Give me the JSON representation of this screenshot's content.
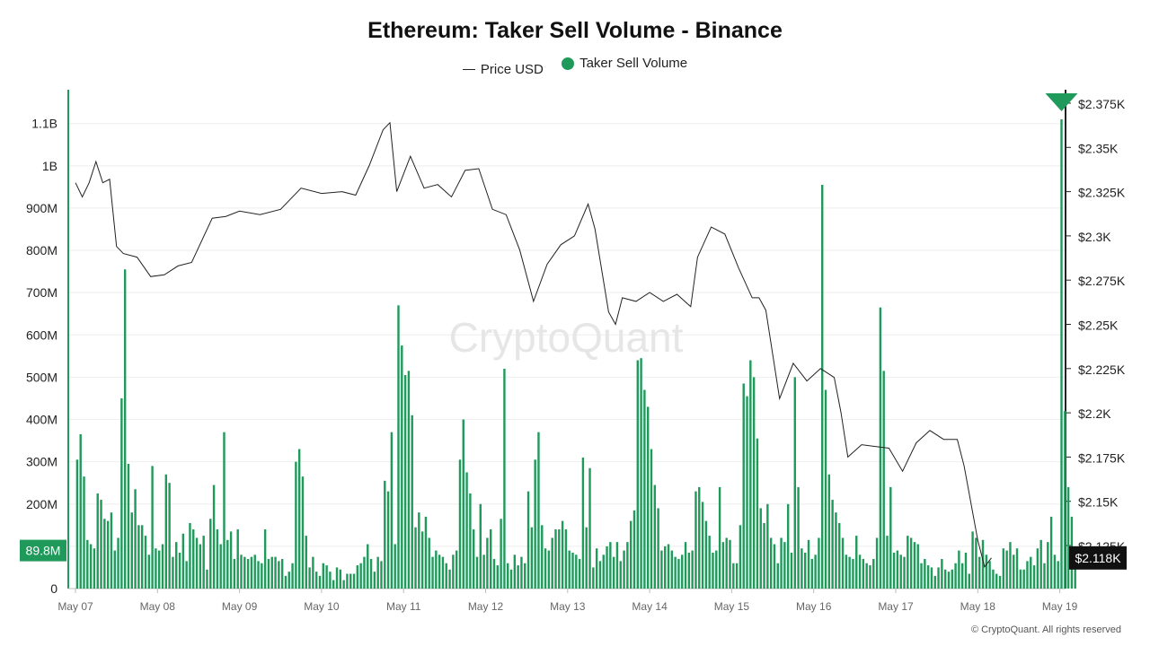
{
  "title": "Ethereum: Taker Sell Volume - Binance",
  "legend": {
    "price_label": "Price USD",
    "volume_label": "Taker Sell Volume"
  },
  "watermark": "CryptoQuant",
  "footer": "© CryptoQuant. All rights reserved",
  "colors": {
    "bar": "#1f9a5a",
    "price_line": "#222222",
    "marker": "#1f9a5a",
    "badge_left": "#1f9a5a",
    "badge_right": "#111111"
  },
  "chart_data": {
    "type": "bar",
    "grid": true,
    "legend_position": "top-center",
    "x_ticks": [
      "May 07",
      "May 08",
      "May 09",
      "May 10",
      "May 11",
      "May 12",
      "May 13",
      "May 14",
      "May 15",
      "May 16",
      "May 17",
      "May 18",
      "May 19"
    ],
    "y_left": {
      "ticks": [
        "0",
        "100M",
        "200M",
        "300M",
        "400M",
        "500M",
        "600M",
        "700M",
        "800M",
        "900M",
        "1B",
        "1.1B"
      ],
      "ylim": [
        0,
        1180000000
      ]
    },
    "y_right": {
      "ticks": [
        "$2.125K",
        "$2.15K",
        "$2.175K",
        "$2.2K",
        "$2.225K",
        "$2.25K",
        "$2.275K",
        "$2.3K",
        "$2.325K",
        "$2.35K",
        "$2.375K"
      ],
      "ylim": [
        2100,
        2380
      ]
    },
    "current_volume_label": "89.8M",
    "current_price_label": "$2.118K",
    "series": [
      {
        "name": "Taker Sell Volume",
        "type": "bar",
        "x_start": "May 07 00:00",
        "interval": "1h",
        "values_M": [
          305,
          365,
          265,
          115,
          105,
          95,
          225,
          210,
          165,
          160,
          180,
          90,
          120,
          450,
          755,
          295,
          180,
          235,
          150,
          150,
          125,
          80,
          290,
          95,
          90,
          105,
          270,
          250,
          75,
          110,
          85,
          130,
          65,
          155,
          140,
          120,
          105,
          125,
          45,
          165,
          245,
          140,
          105,
          370,
          115,
          135,
          70,
          140,
          80,
          75,
          70,
          75,
          80,
          65,
          60,
          140,
          70,
          75,
          75,
          65,
          70,
          30,
          40,
          60,
          300,
          330,
          265,
          125,
          50,
          75,
          40,
          30,
          60,
          55,
          40,
          20,
          50,
          45,
          20,
          35,
          35,
          35,
          55,
          60,
          75,
          105,
          70,
          40,
          75,
          65,
          255,
          230,
          370,
          105,
          670,
          575,
          505,
          515,
          410,
          145,
          180,
          135,
          170,
          120,
          75,
          90,
          80,
          75,
          60,
          45,
          80,
          90,
          305,
          400,
          275,
          225,
          140,
          75,
          200,
          80,
          120,
          140,
          70,
          55,
          165,
          520,
          60,
          45,
          80,
          55,
          75,
          60,
          230,
          145,
          305,
          370,
          150,
          95,
          90,
          120,
          140,
          140,
          160,
          140,
          90,
          85,
          80,
          70,
          310,
          145,
          285,
          50,
          95,
          65,
          80,
          100,
          110,
          75,
          110,
          65,
          90,
          110,
          160,
          185,
          540,
          545,
          470,
          430,
          330,
          245,
          190,
          90,
          100,
          105,
          90,
          75,
          70,
          80,
          110,
          85,
          90,
          230,
          240,
          205,
          160,
          125,
          85,
          90,
          240,
          110,
          120,
          115,
          60,
          60,
          150,
          485,
          455,
          540,
          500,
          355,
          190,
          155,
          200,
          120,
          105,
          60,
          120,
          110,
          200,
          85,
          500,
          240,
          95,
          85,
          115,
          70,
          80,
          120,
          955,
          470,
          270,
          210,
          180,
          155,
          120,
          80,
          75,
          70,
          125,
          80,
          70,
          60,
          55,
          70,
          120,
          665,
          515,
          125,
          240,
          85,
          90,
          80,
          75,
          125,
          120,
          110,
          105,
          60,
          70,
          55,
          50,
          30,
          50,
          70,
          45,
          40,
          45,
          60,
          90,
          60,
          85,
          35,
          135,
          120,
          75,
          115,
          80,
          65,
          45,
          35,
          30,
          95,
          90,
          110,
          80,
          95,
          45,
          45,
          65,
          75,
          55,
          95,
          115,
          60,
          110,
          170,
          80,
          65,
          1110,
          420,
          240,
          170,
          90
        ]
      },
      {
        "name": "Price USD",
        "type": "line",
        "points": [
          [
            "May 07 00:00",
            2330
          ],
          [
            "May 07 02:00",
            2322
          ],
          [
            "May 07 04:00",
            2330
          ],
          [
            "May 07 06:00",
            2342
          ],
          [
            "May 07 08:00",
            2330
          ],
          [
            "May 07 10:00",
            2332
          ],
          [
            "May 07 12:00",
            2294
          ],
          [
            "May 07 14:00",
            2290
          ],
          [
            "May 07 18:00",
            2288
          ],
          [
            "May 07 22:00",
            2277
          ],
          [
            "May 08 02:00",
            2278
          ],
          [
            "May 08 06:00",
            2283
          ],
          [
            "May 08 10:00",
            2285
          ],
          [
            "May 08 16:00",
            2310
          ],
          [
            "May 08 20:00",
            2311
          ],
          [
            "May 09 00:00",
            2314
          ],
          [
            "May 09 06:00",
            2312
          ],
          [
            "May 09 12:00",
            2315
          ],
          [
            "May 09 18:00",
            2327
          ],
          [
            "May 10 00:00",
            2324
          ],
          [
            "May 10 06:00",
            2325
          ],
          [
            "May 10 10:00",
            2323
          ],
          [
            "May 10 14:00",
            2340
          ],
          [
            "May 10 18:00",
            2360
          ],
          [
            "May 10 20:00",
            2364
          ],
          [
            "May 10 22:00",
            2325
          ],
          [
            "May 11 02:00",
            2345
          ],
          [
            "May 11 06:00",
            2327
          ],
          [
            "May 11 10:00",
            2329
          ],
          [
            "May 11 14:00",
            2322
          ],
          [
            "May 11 18:00",
            2337
          ],
          [
            "May 11 22:00",
            2338
          ],
          [
            "May 12 02:00",
            2315
          ],
          [
            "May 12 06:00",
            2312
          ],
          [
            "May 12 10:00",
            2292
          ],
          [
            "May 12 14:00",
            2263
          ],
          [
            "May 12 18:00",
            2284
          ],
          [
            "May 12 22:00",
            2295
          ],
          [
            "May 13 02:00",
            2300
          ],
          [
            "May 13 06:00",
            2318
          ],
          [
            "May 13 08:00",
            2304
          ],
          [
            "May 13 12:00",
            2257
          ],
          [
            "May 13 14:00",
            2250
          ],
          [
            "May 13 16:00",
            2265
          ],
          [
            "May 13 20:00",
            2263
          ],
          [
            "May 14 00:00",
            2268
          ],
          [
            "May 14 04:00",
            2263
          ],
          [
            "May 14 08:00",
            2267
          ],
          [
            "May 14 12:00",
            2260
          ],
          [
            "May 14 14:00",
            2288
          ],
          [
            "May 14 18:00",
            2305
          ],
          [
            "May 14 22:00",
            2301
          ],
          [
            "May 15 02:00",
            2282
          ],
          [
            "May 15 06:00",
            2265
          ],
          [
            "May 15 08:00",
            2265
          ],
          [
            "May 15 10:00",
            2258
          ],
          [
            "May 15 14:00",
            2208
          ],
          [
            "May 15 18:00",
            2228
          ],
          [
            "May 15 22:00",
            2218
          ],
          [
            "May 16 02:00",
            2225
          ],
          [
            "May 16 06:00",
            2220
          ],
          [
            "May 16 08:00",
            2200
          ],
          [
            "May 16 10:00",
            2175
          ],
          [
            "May 16 14:00",
            2182
          ],
          [
            "May 16 18:00",
            2181
          ],
          [
            "May 16 22:00",
            2180
          ],
          [
            "May 17 02:00",
            2167
          ],
          [
            "May 17 06:00",
            2183
          ],
          [
            "May 17 10:00",
            2190
          ],
          [
            "May 17 14:00",
            2185
          ],
          [
            "May 17 18:00",
            2185
          ],
          [
            "May 17 20:00",
            2170
          ],
          [
            "May 18 00:00",
            2128
          ],
          [
            "May 18 02:00",
            2113
          ],
          [
            "May 18 04:00",
            2118
          ]
        ]
      }
    ]
  }
}
